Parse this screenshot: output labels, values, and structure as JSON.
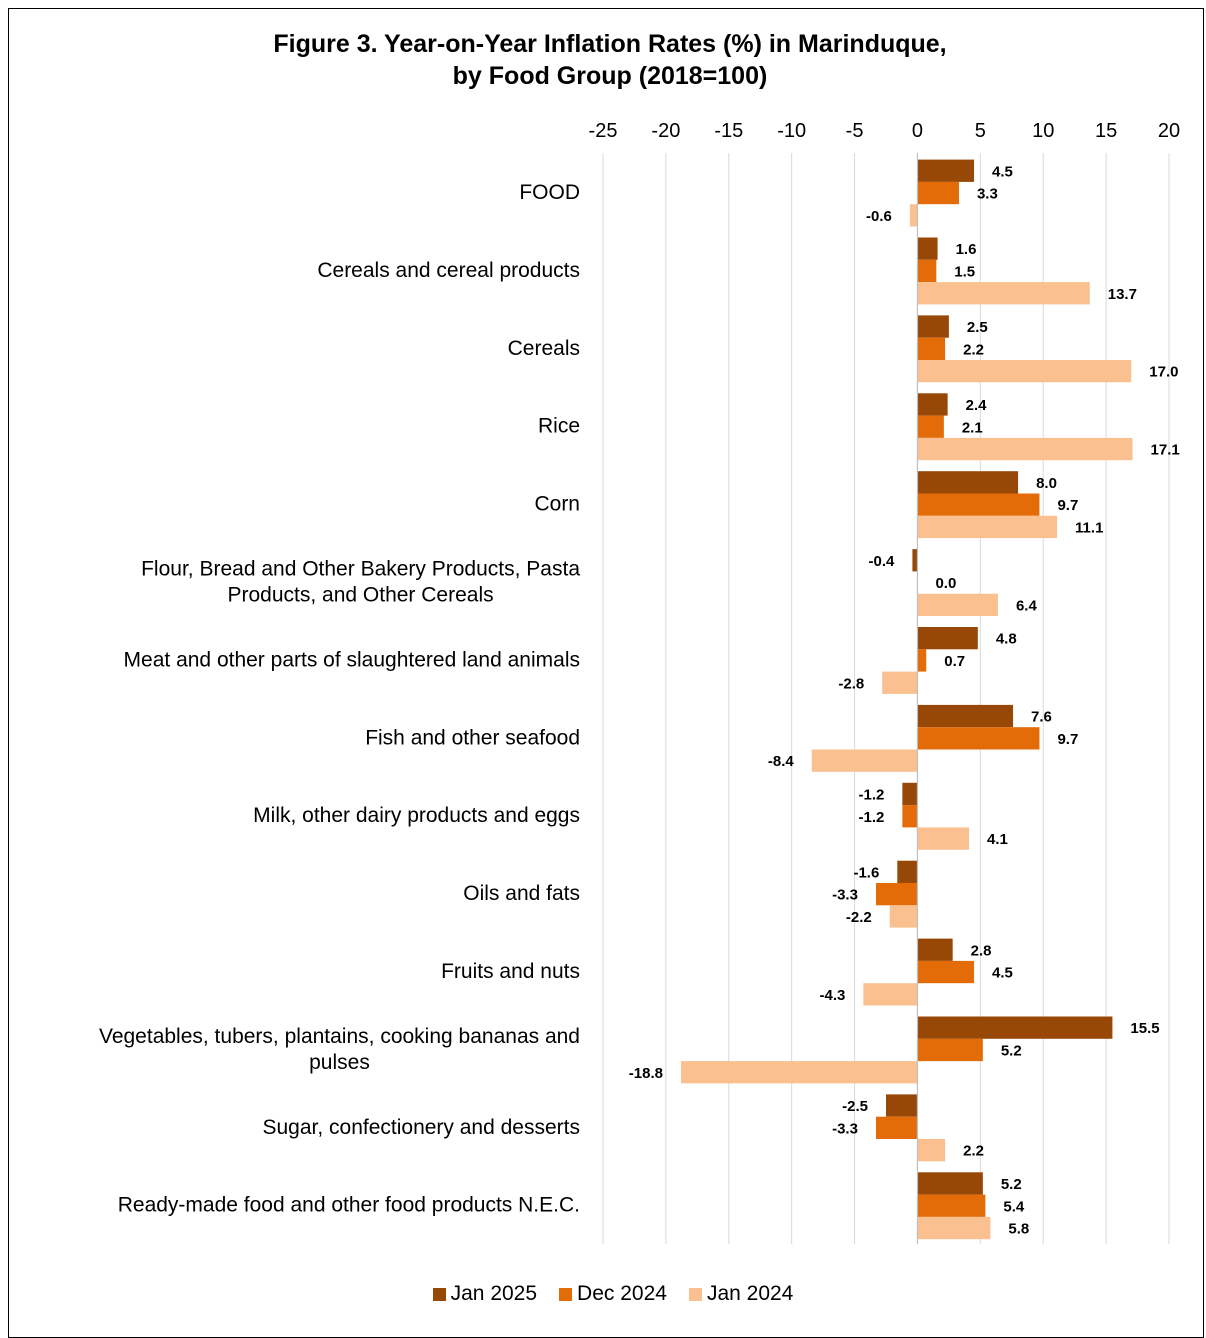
{
  "chart_data": {
    "type": "bar",
    "orientation": "horizontal",
    "title_line1": "Figure 3. Year-on-Year Inflation Rates (%) in Marinduque,",
    "title_line2": "by Food Group (2018=100)",
    "xlim": [
      -25,
      20
    ],
    "x_ticks": [
      "-25",
      "-20",
      "-15",
      "-10",
      "-5",
      "0",
      "5",
      "10",
      "15",
      "20"
    ],
    "grid": "vertical",
    "legend_position": "bottom",
    "categories": [
      [
        "FOOD"
      ],
      [
        "Cereals and cereal products"
      ],
      [
        "Cereals "
      ],
      [
        "Rice"
      ],
      [
        "Corn"
      ],
      [
        "Flour, Bread and Other Bakery Products, Pasta",
        "Products,  and Other Cereals"
      ],
      [
        "Meat and other parts of slaughtered land animals"
      ],
      [
        "Fish and other seafood"
      ],
      [
        "Milk, other dairy products and eggs"
      ],
      [
        "Oils and fats"
      ],
      [
        "Fruits and nuts"
      ],
      [
        "Vegetables, tubers, plantains, cooking bananas and",
        "pulses"
      ],
      [
        "Sugar, confectionery and desserts"
      ],
      [
        "Ready-made food and other food products N.E.C."
      ]
    ],
    "series": [
      {
        "name": "Jan 2025",
        "color": "#974706",
        "values": [
          4.5,
          1.6,
          2.5,
          2.4,
          8.0,
          -0.4,
          4.8,
          7.6,
          -1.2,
          -1.6,
          2.8,
          15.5,
          -2.5,
          5.2
        ]
      },
      {
        "name": "Dec 2024",
        "color": "#E36C09",
        "values": [
          3.3,
          1.5,
          2.2,
          2.1,
          9.7,
          0.0,
          0.7,
          9.7,
          -1.2,
          -3.3,
          4.5,
          5.2,
          -3.3,
          5.4
        ]
      },
      {
        "name": "Jan 2024",
        "color": "#FAC090",
        "values": [
          -0.6,
          13.7,
          17.0,
          17.1,
          11.1,
          6.4,
          -2.8,
          -8.4,
          4.1,
          -2.2,
          -4.3,
          -18.8,
          2.2,
          5.8
        ]
      }
    ]
  }
}
